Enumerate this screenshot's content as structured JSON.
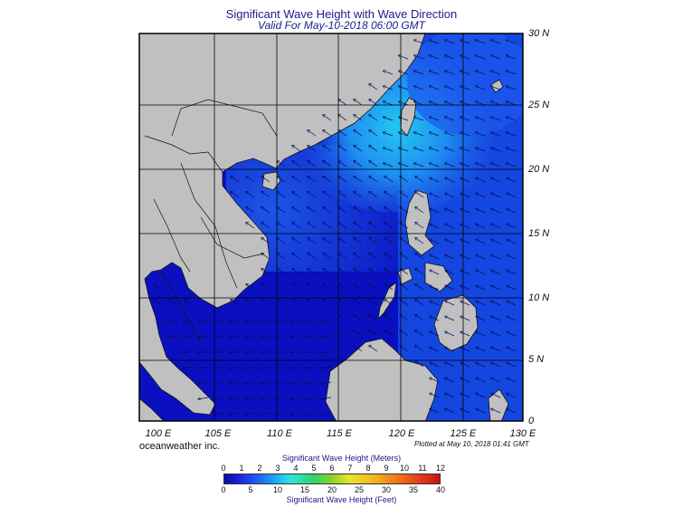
{
  "title": "Significant Wave Height with Wave Direction",
  "subtitle": "Valid For May-10-2018 06:00 GMT",
  "latitude_labels": [
    "30 N",
    "25 N",
    "20 N",
    "15 N",
    "10 N",
    "5 N",
    "0"
  ],
  "longitude_labels": [
    "100 E",
    "105 E",
    "110 E",
    "115 E",
    "120 E",
    "125 E",
    "130 E"
  ],
  "brand": "oceanweather inc.",
  "plotted": "Plotted at May 10, 2018 01:41 GMT",
  "colorbar": {
    "meters_title": "Significant Wave Height (Meters)",
    "feet_title": "Significant Wave Height (Feet)",
    "meters_ticks": [
      "0",
      "1",
      "2",
      "3",
      "4",
      "5",
      "6",
      "7",
      "8",
      "9",
      "10",
      "11",
      "12"
    ],
    "feet_ticks": [
      "0",
      "5",
      "10",
      "15",
      "20",
      "25",
      "30",
      "35",
      "40"
    ]
  },
  "map_extent": {
    "lon_range": [
      100,
      130
    ],
    "lat_range": [
      0,
      30
    ]
  },
  "colors": {
    "land": "#c0c0c0",
    "sea_low": "#0a0ab4",
    "sea_mid": "#1e64f0",
    "sea_high": "#24c8f0",
    "arrow": "#0a0a55",
    "title": "#1a1a8c"
  }
}
